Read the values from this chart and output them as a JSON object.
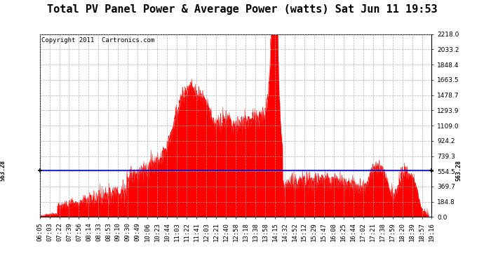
{
  "title": "Total PV Panel Power & Average Power (watts) Sat Jun 11 19:53",
  "copyright": "Copyright 2011  Cartronics.com",
  "ymin": 0.0,
  "ymax": 2218.0,
  "yticks": [
    0.0,
    184.8,
    369.7,
    554.5,
    739.3,
    924.2,
    1109.0,
    1293.9,
    1478.7,
    1663.5,
    1848.4,
    2033.2,
    2218.0
  ],
  "average_value": 563.28,
  "average_label": "563.28",
  "bg_color": "#ffffff",
  "fill_color": "#ff0000",
  "avg_line_color": "#0000cc",
  "grid_color": "#aaaaaa",
  "title_fontsize": 11,
  "copyright_fontsize": 6.5,
  "tick_fontsize": 6.5,
  "xtick_labels": [
    "06:05",
    "07:03",
    "07:22",
    "07:39",
    "07:56",
    "08:14",
    "08:33",
    "08:53",
    "09:10",
    "09:30",
    "09:49",
    "10:06",
    "10:23",
    "10:44",
    "11:03",
    "11:22",
    "11:41",
    "12:03",
    "12:21",
    "12:40",
    "12:58",
    "13:18",
    "13:38",
    "13:58",
    "14:15",
    "14:32",
    "14:52",
    "15:12",
    "15:29",
    "15:47",
    "16:08",
    "16:25",
    "16:44",
    "17:02",
    "17:21",
    "17:38",
    "17:59",
    "18:20",
    "18:39",
    "18:57",
    "19:16"
  ]
}
